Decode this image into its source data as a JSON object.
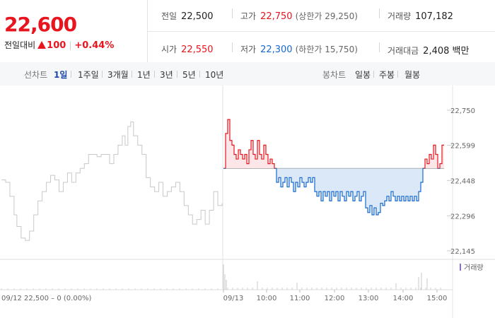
{
  "header": {
    "price": "22,600",
    "change_label": "전일대비",
    "change_value": "100",
    "change_pct": "+0.44%"
  },
  "stats": {
    "prev_label": "전일",
    "prev_value": "22,500",
    "high_label": "고가",
    "high_value": "22,750",
    "upper_limit": "(상한가 29,250)",
    "volume_label": "거래량",
    "volume_value": "107,182",
    "open_label": "시가",
    "open_value": "22,550",
    "low_label": "저가",
    "low_value": "22,300",
    "lower_limit": "(하한가 15,750)",
    "amount_label": "거래대금",
    "amount_value": "2,408 백만"
  },
  "tabs": {
    "line_label": "선차트",
    "line_items": [
      "1일",
      "1주일",
      "3개월",
      "1년",
      "3년",
      "5년",
      "10년"
    ],
    "line_active": "1일",
    "candle_label": "봉차트",
    "candle_items": [
      "일봉",
      "주봉",
      "월봉"
    ]
  },
  "colors": {
    "up": "#e8141e",
    "down": "#1769d1",
    "prev_day_line": "#c8c8c8",
    "fill_up": "#fce6e7",
    "fill_down": "#dbe8f8"
  },
  "chart_data": {
    "type": "line",
    "y_ticks": [
      "22,750",
      "22,599",
      "22,448",
      "22,296",
      "22,145"
    ],
    "ylim": [
      22145,
      22750
    ],
    "baseline_value": 22500,
    "volume_legend": "거래량",
    "prev_day_caption": "09/12  22,500 – 0 (0.00%)",
    "x_ticks": [
      "09/13",
      "10:00",
      "11:00",
      "12:00",
      "13:00",
      "14:00",
      "15:00"
    ],
    "prev_day_series": [
      [
        0,
        22450
      ],
      [
        6,
        22440
      ],
      [
        12,
        22380
      ],
      [
        18,
        22300
      ],
      [
        22,
        22250
      ],
      [
        28,
        22200
      ],
      [
        34,
        22190
      ],
      [
        40,
        22230
      ],
      [
        46,
        22300
      ],
      [
        52,
        22360
      ],
      [
        58,
        22400
      ],
      [
        64,
        22440
      ],
      [
        70,
        22470
      ],
      [
        76,
        22450
      ],
      [
        82,
        22400
      ],
      [
        88,
        22440
      ],
      [
        94,
        22480
      ],
      [
        100,
        22440
      ],
      [
        106,
        22480
      ],
      [
        112,
        22500
      ],
      [
        118,
        22520
      ],
      [
        124,
        22560
      ],
      [
        130,
        22560
      ],
      [
        136,
        22550
      ],
      [
        142,
        22560
      ],
      [
        148,
        22560
      ],
      [
        154,
        22520
      ],
      [
        160,
        22560
      ],
      [
        166,
        22600
      ],
      [
        172,
        22640
      ],
      [
        176,
        22600
      ],
      [
        180,
        22680
      ],
      [
        184,
        22700
      ],
      [
        188,
        22640
      ],
      [
        194,
        22600
      ],
      [
        200,
        22560
      ],
      [
        206,
        22460
      ],
      [
        212,
        22420
      ],
      [
        218,
        22400
      ],
      [
        224,
        22440
      ],
      [
        230,
        22380
      ],
      [
        236,
        22400
      ],
      [
        242,
        22420
      ],
      [
        248,
        22440
      ],
      [
        254,
        22400
      ],
      [
        260,
        22340
      ],
      [
        266,
        22300
      ],
      [
        272,
        22260
      ],
      [
        278,
        22280
      ],
      [
        284,
        22320
      ],
      [
        290,
        22260
      ],
      [
        296,
        22320
      ],
      [
        302,
        22400
      ],
      [
        308,
        22340
      ],
      [
        314,
        22350
      ]
    ],
    "today_series": [
      [
        0,
        22500
      ],
      [
        3,
        22650
      ],
      [
        6,
        22710
      ],
      [
        9,
        22620
      ],
      [
        12,
        22600
      ],
      [
        15,
        22560
      ],
      [
        18,
        22540
      ],
      [
        21,
        22580
      ],
      [
        24,
        22560
      ],
      [
        27,
        22540
      ],
      [
        30,
        22560
      ],
      [
        33,
        22520
      ],
      [
        36,
        22580
      ],
      [
        39,
        22620
      ],
      [
        42,
        22560
      ],
      [
        45,
        22540
      ],
      [
        48,
        22620
      ],
      [
        51,
        22560
      ],
      [
        54,
        22540
      ],
      [
        57,
        22600
      ],
      [
        60,
        22560
      ],
      [
        63,
        22520
      ],
      [
        66,
        22540
      ],
      [
        69,
        22520
      ],
      [
        72,
        22500
      ],
      [
        75,
        22440
      ],
      [
        78,
        22460
      ],
      [
        81,
        22420
      ],
      [
        84,
        22440
      ],
      [
        87,
        22460
      ],
      [
        90,
        22420
      ],
      [
        93,
        22460
      ],
      [
        96,
        22440
      ],
      [
        99,
        22400
      ],
      [
        102,
        22440
      ],
      [
        105,
        22420
      ],
      [
        108,
        22460
      ],
      [
        111,
        22440
      ],
      [
        114,
        22420
      ],
      [
        117,
        22440
      ],
      [
        120,
        22460
      ],
      [
        123,
        22440
      ],
      [
        126,
        22460
      ],
      [
        129,
        22400
      ],
      [
        132,
        22380
      ],
      [
        135,
        22400
      ],
      [
        138,
        22360
      ],
      [
        141,
        22400
      ],
      [
        144,
        22380
      ],
      [
        147,
        22400
      ],
      [
        150,
        22360
      ],
      [
        153,
        22400
      ],
      [
        156,
        22380
      ],
      [
        159,
        22400
      ],
      [
        162,
        22360
      ],
      [
        165,
        22400
      ],
      [
        168,
        22380
      ],
      [
        171,
        22360
      ],
      [
        174,
        22400
      ],
      [
        177,
        22380
      ],
      [
        180,
        22400
      ],
      [
        183,
        22360
      ],
      [
        186,
        22380
      ],
      [
        189,
        22400
      ],
      [
        192,
        22360
      ],
      [
        195,
        22380
      ],
      [
        198,
        22400
      ],
      [
        201,
        22330
      ],
      [
        204,
        22310
      ],
      [
        207,
        22340
      ],
      [
        210,
        22300
      ],
      [
        213,
        22330
      ],
      [
        216,
        22300
      ],
      [
        219,
        22310
      ],
      [
        222,
        22350
      ],
      [
        225,
        22340
      ],
      [
        228,
        22360
      ],
      [
        231,
        22380
      ],
      [
        234,
        22360
      ],
      [
        237,
        22400
      ],
      [
        240,
        22380
      ],
      [
        243,
        22360
      ],
      [
        246,
        22380
      ],
      [
        249,
        22360
      ],
      [
        252,
        22380
      ],
      [
        255,
        22360
      ],
      [
        258,
        22380
      ],
      [
        261,
        22360
      ],
      [
        264,
        22380
      ],
      [
        267,
        22360
      ],
      [
        270,
        22380
      ],
      [
        273,
        22360
      ],
      [
        276,
        22400
      ],
      [
        279,
        22440
      ],
      [
        282,
        22500
      ],
      [
        285,
        22540
      ],
      [
        288,
        22520
      ],
      [
        291,
        22560
      ],
      [
        294,
        22540
      ],
      [
        297,
        22600
      ],
      [
        300,
        22560
      ],
      [
        303,
        22500
      ],
      [
        306,
        22520
      ],
      [
        309,
        22600
      ],
      [
        312,
        22600
      ]
    ]
  }
}
